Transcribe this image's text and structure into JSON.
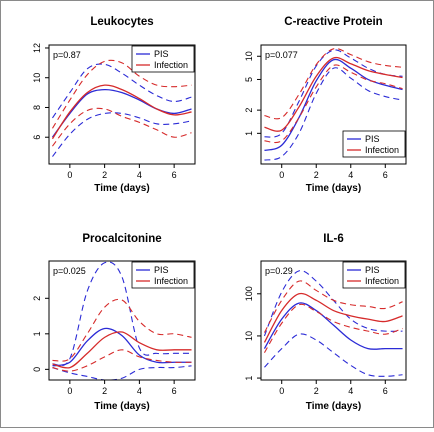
{
  "colors": {
    "pis": "#2b2bd6",
    "infection": "#d62b2b",
    "frame": "#000000"
  },
  "chart_data": [
    {
      "type": "line",
      "title": "Leukocytes",
      "xlabel": "Time (days)",
      "ylabel": "",
      "p_value": "p=0.87",
      "legend": {
        "position": "top-right",
        "entries": [
          "PIS",
          "Infection"
        ]
      },
      "xlim": [
        -1.2,
        7.2
      ],
      "xticks": [
        0,
        2,
        4,
        6
      ],
      "ylim": [
        4.2,
        12.2
      ],
      "yticks": [
        6,
        8,
        10,
        12
      ],
      "log_y": false,
      "x": [
        -1,
        0,
        1,
        2,
        3,
        4,
        5,
        6,
        7
      ],
      "series": [
        {
          "name": "PIS",
          "role": "mean",
          "values": [
            6.0,
            7.6,
            8.9,
            9.2,
            9.0,
            8.5,
            7.9,
            7.6,
            7.9
          ]
        },
        {
          "name": "PIS",
          "role": "ci_upper",
          "values": [
            7.3,
            9.0,
            10.6,
            10.9,
            10.3,
            9.5,
            8.8,
            8.4,
            8.7
          ]
        },
        {
          "name": "PIS",
          "role": "ci_lower",
          "values": [
            4.7,
            6.2,
            7.2,
            7.6,
            7.6,
            7.3,
            6.9,
            6.9,
            7.1
          ]
        },
        {
          "name": "Infection",
          "role": "mean",
          "values": [
            5.9,
            7.7,
            9.0,
            9.5,
            9.2,
            8.6,
            7.9,
            7.5,
            7.7
          ]
        },
        {
          "name": "Infection",
          "role": "ci_upper",
          "values": [
            6.6,
            8.5,
            10.2,
            11.1,
            11.0,
            10.1,
            9.5,
            9.4,
            9.5
          ]
        },
        {
          "name": "Infection",
          "role": "ci_lower",
          "values": [
            5.4,
            6.9,
            7.8,
            7.9,
            7.4,
            7.0,
            6.5,
            6.0,
            6.3
          ]
        }
      ]
    },
    {
      "type": "line",
      "title": "C-reactive Protein",
      "xlabel": "Time (days)",
      "ylabel": "",
      "p_value": "p=0.077",
      "legend": {
        "position": "bottom-right",
        "entries": [
          "PIS",
          "Infection"
        ]
      },
      "xlim": [
        -1.2,
        7.2
      ],
      "xticks": [
        0,
        2,
        4,
        6
      ],
      "ylim": [
        0.4,
        14
      ],
      "yticks": [
        1,
        2,
        5,
        10
      ],
      "log_y": true,
      "x": [
        -1,
        0,
        1,
        2,
        3,
        4,
        5,
        6,
        7
      ],
      "series": [
        {
          "name": "PIS",
          "role": "mean",
          "values": [
            0.6,
            0.7,
            1.6,
            4.8,
            9.0,
            7.0,
            5.0,
            4.2,
            3.7
          ]
        },
        {
          "name": "PIS",
          "role": "ci_upper",
          "values": [
            0.9,
            1.0,
            2.6,
            7.5,
            12.0,
            9.5,
            7.0,
            5.8,
            5.5
          ]
        },
        {
          "name": "PIS",
          "role": "ci_lower",
          "values": [
            0.45,
            0.5,
            1.0,
            3.3,
            7.0,
            5.2,
            3.6,
            3.0,
            2.7
          ]
        },
        {
          "name": "Infection",
          "role": "mean",
          "values": [
            1.2,
            1.1,
            2.2,
            5.5,
            9.5,
            8.0,
            6.5,
            5.8,
            5.3
          ]
        },
        {
          "name": "Infection",
          "role": "ci_upper",
          "values": [
            1.7,
            1.6,
            3.2,
            7.8,
            12.5,
            10.5,
            8.5,
            7.6,
            7.2
          ]
        },
        {
          "name": "Infection",
          "role": "ci_lower",
          "values": [
            0.8,
            0.8,
            1.6,
            4.0,
            7.6,
            6.2,
            4.9,
            4.4,
            3.8
          ]
        }
      ]
    },
    {
      "type": "line",
      "title": "Procalcitonine",
      "xlabel": "Time (days)",
      "ylabel": "",
      "p_value": "p=0.025",
      "legend": {
        "position": "top-right",
        "entries": [
          "PIS",
          "Infection"
        ]
      },
      "xlim": [
        -1.2,
        7.2
      ],
      "xticks": [
        0,
        2,
        4,
        6
      ],
      "ylim": [
        -0.3,
        3.05
      ],
      "yticks": [
        0,
        1,
        2
      ],
      "log_y": false,
      "x": [
        -1,
        0,
        1,
        2,
        3,
        4,
        5,
        6,
        7
      ],
      "series": [
        {
          "name": "PIS",
          "role": "mean",
          "values": [
            0.1,
            0.2,
            0.8,
            1.15,
            0.95,
            0.4,
            0.2,
            0.2,
            0.2
          ]
        },
        {
          "name": "PIS",
          "role": "ci_upper",
          "values": [
            0.15,
            0.3,
            2.2,
            3.0,
            2.6,
            0.6,
            0.45,
            0.45,
            0.45
          ]
        },
        {
          "name": "PIS",
          "role": "ci_lower",
          "values": [
            0.05,
            -0.1,
            -0.2,
            -0.3,
            -0.25,
            0.0,
            0.05,
            0.05,
            0.1
          ]
        },
        {
          "name": "Infection",
          "role": "mean",
          "values": [
            0.15,
            0.05,
            0.45,
            0.9,
            1.05,
            0.75,
            0.55,
            0.55,
            0.55
          ]
        },
        {
          "name": "Infection",
          "role": "ci_upper",
          "values": [
            0.25,
            0.3,
            1.0,
            1.75,
            1.95,
            1.35,
            1.0,
            1.0,
            0.9
          ]
        },
        {
          "name": "Infection",
          "role": "ci_lower",
          "values": [
            0.05,
            -0.05,
            0.1,
            0.35,
            0.55,
            0.35,
            0.25,
            0.2,
            0.2
          ]
        }
      ]
    },
    {
      "type": "line",
      "title": "IL-6",
      "xlabel": "Time (days)",
      "ylabel": "",
      "p_value": "p=0.29",
      "legend": {
        "position": "top-right",
        "entries": [
          "PIS",
          "Infection"
        ]
      },
      "xlim": [
        -1.2,
        7.2
      ],
      "xticks": [
        0,
        2,
        4,
        6
      ],
      "ylim": [
        0.9,
        600
      ],
      "yticks": [
        1,
        10,
        100
      ],
      "log_y": true,
      "x": [
        -1,
        0,
        1,
        2,
        3,
        4,
        5,
        6,
        7
      ],
      "series": [
        {
          "name": "PIS",
          "role": "mean",
          "values": [
            5,
            25,
            60,
            40,
            18,
            8,
            5,
            5,
            5
          ]
        },
        {
          "name": "PIS",
          "role": "ci_upper",
          "values": [
            10,
            110,
            350,
            200,
            70,
            25,
            15,
            13,
            13
          ]
        },
        {
          "name": "PIS",
          "role": "ci_lower",
          "values": [
            1.8,
            5,
            11,
            8,
            4,
            2,
            1.2,
            1.1,
            1.2
          ]
        },
        {
          "name": "Infection",
          "role": "mean",
          "values": [
            7,
            40,
            100,
            70,
            40,
            30,
            25,
            22,
            30
          ]
        },
        {
          "name": "Infection",
          "role": "ci_upper",
          "values": [
            12,
            70,
            200,
            120,
            70,
            55,
            50,
            45,
            65
          ]
        },
        {
          "name": "Infection",
          "role": "ci_lower",
          "values": [
            4,
            20,
            55,
            38,
            22,
            16,
            13,
            11,
            15
          ]
        }
      ]
    }
  ]
}
